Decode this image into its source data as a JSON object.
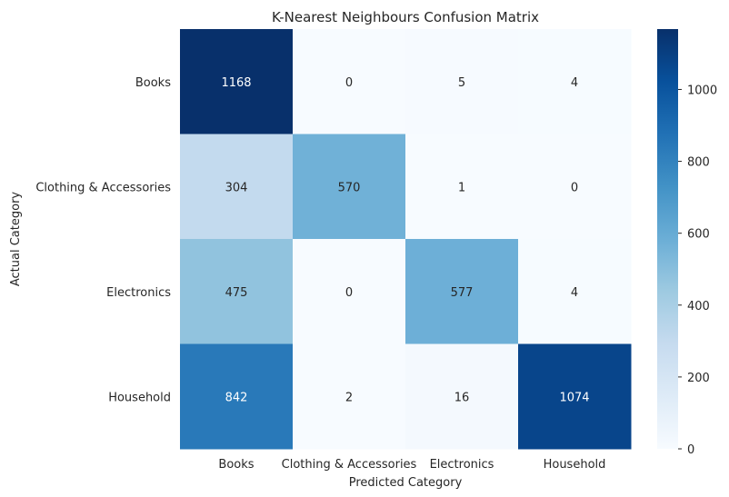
{
  "chart_data": {
    "type": "heatmap",
    "title": "K-Nearest Neighbours Confusion Matrix",
    "xlabel": "Predicted Category",
    "ylabel": "Actual Category",
    "x_categories": [
      "Books",
      "Clothing & Accessories",
      "Electronics",
      "Household"
    ],
    "y_categories": [
      "Books",
      "Clothing & Accessories",
      "Electronics",
      "Household"
    ],
    "values": [
      [
        1168,
        0,
        5,
        4
      ],
      [
        304,
        570,
        1,
        0
      ],
      [
        475,
        0,
        577,
        4
      ],
      [
        842,
        2,
        16,
        1074
      ]
    ],
    "colormap": "Blues",
    "vmin": 0,
    "vmax": 1168,
    "colorbar_ticks": [
      0,
      200,
      400,
      600,
      800,
      1000
    ],
    "text_color_light": "#ffffff",
    "text_color_dark": "#262626",
    "grid": false
  }
}
